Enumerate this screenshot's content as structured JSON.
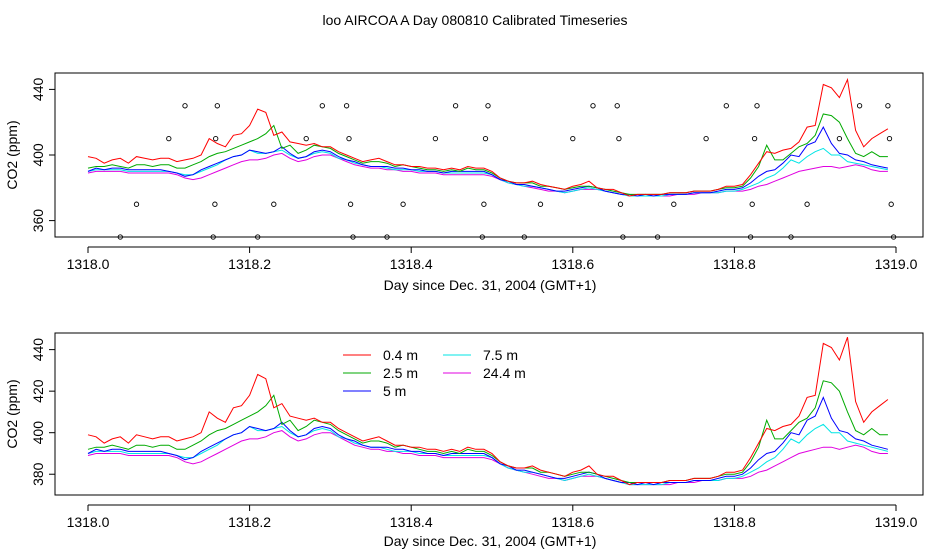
{
  "title": "loo AIRCOA A  Day 080810  Calibrated Timeseries",
  "colors": {
    "0.4 m": "#ff0000",
    "2.5 m": "#00aa00",
    "5 m": "#0000ff",
    "7.5 m": "#00e5e5",
    "24.4 m": "#e000e0",
    "points": "#000000"
  },
  "chart_data": [
    {
      "type": "line",
      "xlabel": "Day since Dec. 31, 2004 (GMT+1)",
      "ylabel": "CO2 (ppm)",
      "xlim": [
        1318.0,
        1319.0
      ],
      "ylim": [
        350,
        450
      ],
      "xticks": [
        1318.0,
        1318.2,
        1318.4,
        1318.6,
        1318.8,
        1319.0
      ],
      "xtick_labels": [
        "1318.0",
        "1318.2",
        "1318.4",
        "1318.6",
        "1318.8",
        "1319.0"
      ],
      "yticks": [
        360,
        400,
        440
      ],
      "ytick_labels": [
        "360",
        "400",
        "440"
      ],
      "grid": false,
      "x": [
        1318.0,
        1318.01,
        1318.02,
        1318.03,
        1318.04,
        1318.05,
        1318.06,
        1318.07,
        1318.08,
        1318.09,
        1318.1,
        1318.11,
        1318.12,
        1318.13,
        1318.14,
        1318.15,
        1318.16,
        1318.17,
        1318.18,
        1318.19,
        1318.2,
        1318.21,
        1318.22,
        1318.23,
        1318.24,
        1318.25,
        1318.26,
        1318.27,
        1318.28,
        1318.29,
        1318.3,
        1318.31,
        1318.32,
        1318.33,
        1318.34,
        1318.35,
        1318.36,
        1318.37,
        1318.38,
        1318.39,
        1318.4,
        1318.41,
        1318.42,
        1318.43,
        1318.44,
        1318.45,
        1318.46,
        1318.47,
        1318.48,
        1318.49,
        1318.5,
        1318.51,
        1318.52,
        1318.53,
        1318.54,
        1318.55,
        1318.56,
        1318.57,
        1318.58,
        1318.59,
        1318.6,
        1318.61,
        1318.62,
        1318.63,
        1318.64,
        1318.65,
        1318.66,
        1318.67,
        1318.68,
        1318.69,
        1318.7,
        1318.71,
        1318.72,
        1318.73,
        1318.74,
        1318.75,
        1318.76,
        1318.77,
        1318.78,
        1318.79,
        1318.8,
        1318.81,
        1318.82,
        1318.83,
        1318.84,
        1318.85,
        1318.86,
        1318.87,
        1318.88,
        1318.89,
        1318.9,
        1318.91,
        1318.92,
        1318.93,
        1318.94,
        1318.95,
        1318.96,
        1318.97,
        1318.98,
        1318.99
      ],
      "series": [
        {
          "values": [
            399,
            398,
            395,
            397,
            398,
            395,
            399,
            398,
            397,
            398,
            398,
            396,
            397,
            398,
            400,
            410,
            407,
            405,
            412,
            413,
            418,
            428,
            426,
            412,
            414,
            408,
            407,
            406,
            407,
            405,
            405,
            402,
            400,
            398,
            396,
            397,
            398,
            396,
            394,
            394,
            393,
            393,
            392,
            392,
            391,
            392,
            391,
            393,
            392,
            392,
            390,
            386,
            384,
            383,
            383,
            384,
            382,
            381,
            380,
            379,
            381,
            382,
            384,
            380,
            379,
            379,
            377,
            375,
            376,
            376,
            376,
            376,
            377,
            377,
            377,
            378,
            378,
            378,
            379,
            381,
            381,
            382,
            388,
            395,
            402,
            401,
            403,
            404,
            408,
            417,
            418,
            443,
            441,
            435,
            446,
            415,
            405,
            410,
            413,
            416
          ]
        },
        {
          "values": [
            392,
            393,
            393,
            394,
            393,
            392,
            394,
            394,
            393,
            394,
            394,
            392,
            392,
            394,
            396,
            399,
            401,
            402,
            404,
            406,
            408,
            410,
            413,
            418,
            404,
            406,
            401,
            403,
            406,
            405,
            404,
            401,
            399,
            397,
            395,
            396,
            396,
            395,
            393,
            394,
            393,
            392,
            391,
            391,
            390,
            391,
            390,
            392,
            391,
            391,
            389,
            386,
            384,
            383,
            383,
            383,
            381,
            381,
            380,
            379,
            380,
            381,
            381,
            380,
            379,
            378,
            377,
            376,
            376,
            376,
            376,
            376,
            377,
            377,
            377,
            378,
            378,
            378,
            379,
            380,
            380,
            381,
            386,
            393,
            406,
            397,
            397,
            401,
            405,
            407,
            412,
            425,
            424,
            420,
            410,
            401,
            399,
            402,
            399,
            399
          ]
        },
        {
          "values": [
            390,
            392,
            391,
            392,
            392,
            391,
            391,
            391,
            391,
            391,
            390,
            389,
            387,
            388,
            391,
            393,
            395,
            397,
            399,
            400,
            403,
            402,
            401,
            402,
            405,
            401,
            398,
            399,
            402,
            403,
            402,
            399,
            397,
            396,
            394,
            393,
            393,
            393,
            392,
            392,
            391,
            391,
            390,
            390,
            389,
            390,
            390,
            390,
            390,
            390,
            388,
            385,
            384,
            382,
            382,
            381,
            380,
            379,
            378,
            378,
            379,
            380,
            381,
            380,
            378,
            377,
            376,
            376,
            375,
            376,
            375,
            376,
            376,
            376,
            376,
            377,
            377,
            377,
            378,
            379,
            379,
            380,
            383,
            387,
            390,
            391,
            395,
            400,
            399,
            406,
            408,
            417,
            407,
            401,
            400,
            397,
            396,
            394,
            393,
            392
          ]
        },
        {
          "values": [
            390,
            391,
            391,
            391,
            391,
            390,
            390,
            390,
            390,
            390,
            390,
            389,
            388,
            388,
            390,
            392,
            394,
            397,
            399,
            400,
            403,
            401,
            401,
            402,
            403,
            400,
            398,
            399,
            401,
            402,
            401,
            398,
            397,
            395,
            394,
            393,
            393,
            392,
            391,
            391,
            391,
            390,
            390,
            390,
            389,
            389,
            389,
            389,
            389,
            389,
            388,
            385,
            383,
            382,
            381,
            381,
            380,
            379,
            378,
            377,
            378,
            379,
            380,
            379,
            378,
            377,
            376,
            375,
            375,
            375,
            375,
            375,
            376,
            376,
            376,
            377,
            377,
            377,
            377,
            378,
            378,
            379,
            381,
            383,
            386,
            388,
            392,
            397,
            395,
            399,
            402,
            404,
            400,
            400,
            396,
            395,
            394,
            393,
            392,
            391
          ]
        },
        {
          "values": [
            389,
            390,
            390,
            390,
            390,
            389,
            389,
            389,
            389,
            389,
            389,
            388,
            386,
            385,
            386,
            388,
            390,
            392,
            394,
            396,
            397,
            397,
            398,
            400,
            401,
            398,
            396,
            397,
            399,
            400,
            400,
            398,
            396,
            394,
            393,
            392,
            392,
            391,
            391,
            390,
            390,
            389,
            389,
            389,
            388,
            388,
            388,
            388,
            388,
            388,
            387,
            385,
            383,
            382,
            381,
            380,
            379,
            378,
            378,
            377,
            378,
            379,
            379,
            379,
            378,
            377,
            376,
            375,
            375,
            375,
            375,
            375,
            375,
            376,
            376,
            376,
            377,
            377,
            377,
            378,
            378,
            378,
            379,
            381,
            382,
            384,
            386,
            388,
            390,
            391,
            392,
            393,
            393,
            392,
            393,
            394,
            393,
            391,
            390,
            390
          ]
        }
      ],
      "points": [
        {
          "x": 1318.04,
          "y": 350
        },
        {
          "x": 1318.06,
          "y": 370
        },
        {
          "x": 1318.1,
          "y": 410
        },
        {
          "x": 1318.12,
          "y": 430
        },
        {
          "x": 1318.155,
          "y": 350
        },
        {
          "x": 1318.157,
          "y": 370
        },
        {
          "x": 1318.158,
          "y": 410
        },
        {
          "x": 1318.16,
          "y": 430
        },
        {
          "x": 1318.21,
          "y": 350
        },
        {
          "x": 1318.23,
          "y": 370
        },
        {
          "x": 1318.27,
          "y": 410
        },
        {
          "x": 1318.29,
          "y": 430
        },
        {
          "x": 1318.32,
          "y": 430
        },
        {
          "x": 1318.323,
          "y": 410
        },
        {
          "x": 1318.325,
          "y": 370
        },
        {
          "x": 1318.328,
          "y": 350
        },
        {
          "x": 1318.37,
          "y": 350
        },
        {
          "x": 1318.39,
          "y": 370
        },
        {
          "x": 1318.43,
          "y": 410
        },
        {
          "x": 1318.455,
          "y": 430
        },
        {
          "x": 1318.488,
          "y": 350
        },
        {
          "x": 1318.49,
          "y": 370
        },
        {
          "x": 1318.492,
          "y": 410
        },
        {
          "x": 1318.495,
          "y": 430
        },
        {
          "x": 1318.54,
          "y": 350
        },
        {
          "x": 1318.56,
          "y": 370
        },
        {
          "x": 1318.6,
          "y": 410
        },
        {
          "x": 1318.625,
          "y": 430
        },
        {
          "x": 1318.655,
          "y": 430
        },
        {
          "x": 1318.657,
          "y": 410
        },
        {
          "x": 1318.659,
          "y": 370
        },
        {
          "x": 1318.662,
          "y": 350
        },
        {
          "x": 1318.705,
          "y": 350
        },
        {
          "x": 1318.725,
          "y": 370
        },
        {
          "x": 1318.765,
          "y": 410
        },
        {
          "x": 1318.79,
          "y": 430
        },
        {
          "x": 1318.82,
          "y": 350
        },
        {
          "x": 1318.822,
          "y": 370
        },
        {
          "x": 1318.825,
          "y": 410
        },
        {
          "x": 1318.828,
          "y": 430
        },
        {
          "x": 1318.87,
          "y": 350
        },
        {
          "x": 1318.89,
          "y": 370
        },
        {
          "x": 1318.93,
          "y": 410
        },
        {
          "x": 1318.955,
          "y": 430
        },
        {
          "x": 1318.99,
          "y": 430
        },
        {
          "x": 1318.992,
          "y": 410
        },
        {
          "x": 1318.994,
          "y": 370
        },
        {
          "x": 1318.997,
          "y": 350
        }
      ]
    },
    {
      "type": "line",
      "xlabel": "Day since Dec. 31, 2004 (GMT+1)",
      "ylabel": "CO2 (ppm)",
      "xlim": [
        1318.0,
        1319.0
      ],
      "ylim": [
        370,
        448
      ],
      "xticks": [
        1318.0,
        1318.2,
        1318.4,
        1318.6,
        1318.8,
        1319.0
      ],
      "xtick_labels": [
        "1318.0",
        "1318.2",
        "1318.4",
        "1318.6",
        "1318.8",
        "1319.0"
      ],
      "yticks": [
        380,
        400,
        420,
        440
      ],
      "ytick_labels": [
        "380",
        "400",
        "420",
        "440"
      ],
      "grid": false,
      "legend": {
        "placement": "top-left",
        "entries": [
          "0.4 m",
          "2.5 m",
          "5 m",
          "7.5 m",
          "24.4 m"
        ]
      },
      "series_names": [
        "0.4 m",
        "2.5 m",
        "5 m",
        "7.5 m",
        "24.4 m"
      ],
      "same_data_as_first_panel": true
    }
  ]
}
